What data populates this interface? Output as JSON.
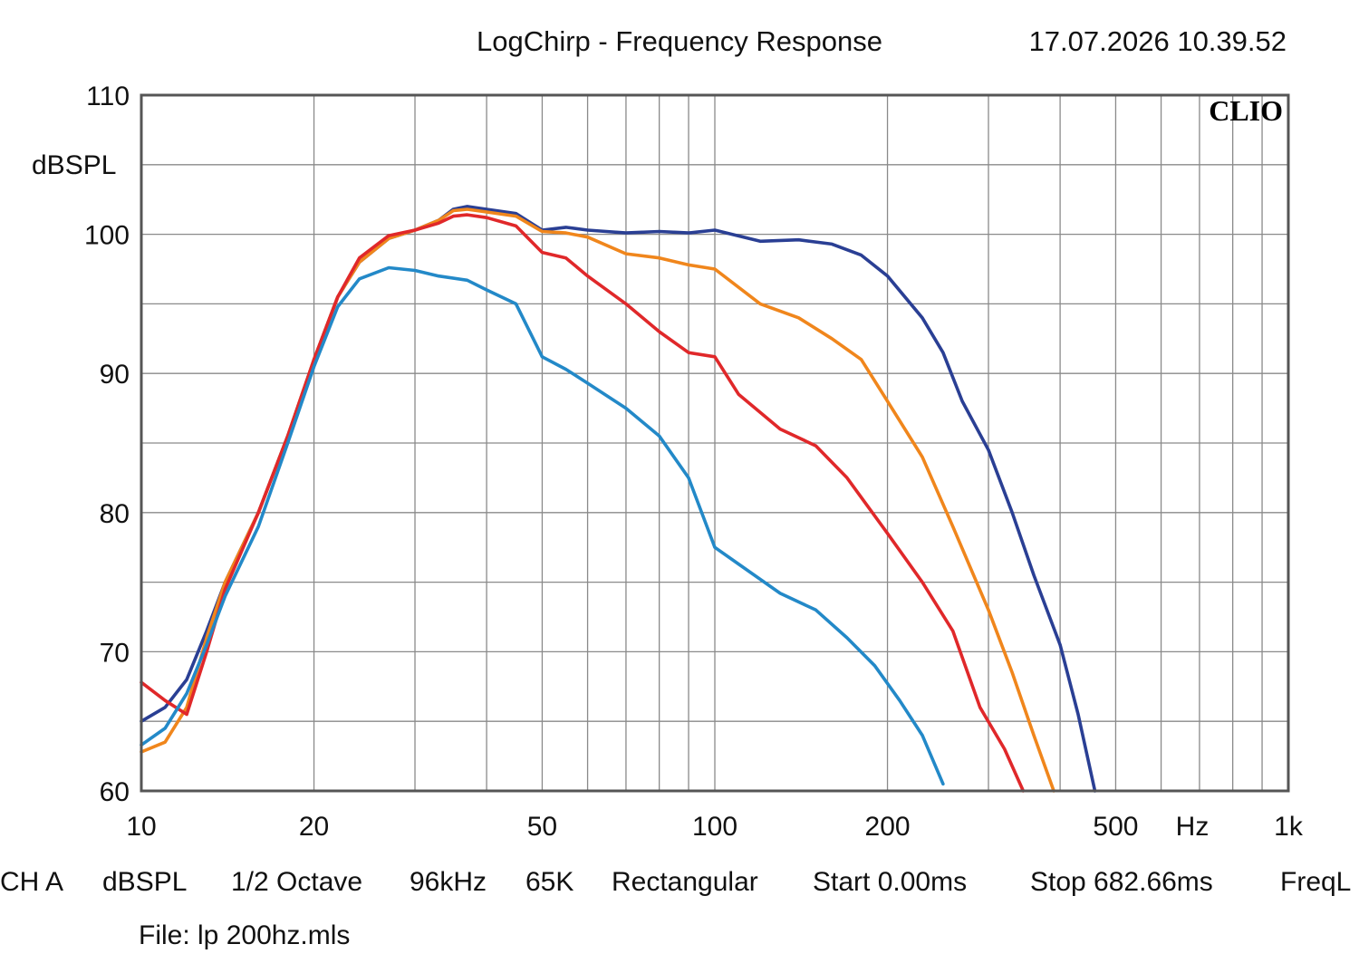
{
  "header": {
    "title": "LogChirp - Frequency Response",
    "timestamp": "17.07.2026 10.39.52"
  },
  "brand": "CLIO",
  "footer": {
    "items": [
      "CH A",
      "dBSPL",
      "1/2 Octave",
      "96kHz",
      "65K",
      "Rectangular",
      "Start 0.00ms",
      "Stop 682.66ms",
      "FreqL"
    ],
    "file": "File: lp 200hz.mls"
  },
  "chart_data": {
    "type": "line",
    "title": "LogChirp - Frequency Response",
    "xlabel": "Hz",
    "ylabel": "dBSPL",
    "xscale": "log",
    "xlim": [
      10,
      1000
    ],
    "ylim": [
      60,
      110
    ],
    "grid": true,
    "x_tick_labels": [
      {
        "value": 10,
        "label": "10"
      },
      {
        "value": 20,
        "label": "20"
      },
      {
        "value": 50,
        "label": "50"
      },
      {
        "value": 100,
        "label": "100"
      },
      {
        "value": 200,
        "label": "200"
      },
      {
        "value": 500,
        "label": "500"
      },
      {
        "value": 1000,
        "label": "1k"
      }
    ],
    "y_tick_labels": [
      60,
      70,
      80,
      90,
      100,
      110
    ],
    "series": [
      {
        "color": "#2a3f94",
        "points": [
          [
            10,
            65
          ],
          [
            11,
            66
          ],
          [
            12,
            68
          ],
          [
            13,
            71.5
          ],
          [
            14,
            75
          ],
          [
            16,
            80
          ],
          [
            18,
            85.5
          ],
          [
            20,
            91
          ],
          [
            22,
            95.5
          ],
          [
            24,
            98
          ],
          [
            27,
            99.7
          ],
          [
            30,
            100.3
          ],
          [
            33,
            101
          ],
          [
            35,
            101.8
          ],
          [
            37,
            102
          ],
          [
            40,
            101.8
          ],
          [
            45,
            101.5
          ],
          [
            50,
            100.3
          ],
          [
            55,
            100.5
          ],
          [
            60,
            100.3
          ],
          [
            70,
            100.1
          ],
          [
            80,
            100.2
          ],
          [
            90,
            100.1
          ],
          [
            100,
            100.3
          ],
          [
            120,
            99.5
          ],
          [
            140,
            99.6
          ],
          [
            160,
            99.3
          ],
          [
            180,
            98.5
          ],
          [
            200,
            97
          ],
          [
            230,
            94
          ],
          [
            250,
            91.5
          ],
          [
            270,
            88
          ],
          [
            300,
            84.5
          ],
          [
            330,
            80
          ],
          [
            360,
            75.5
          ],
          [
            400,
            70.5
          ],
          [
            430,
            65.5
          ],
          [
            460,
            60
          ]
        ]
      },
      {
        "color": "#f0861c",
        "points": [
          [
            10,
            62.8
          ],
          [
            11,
            63.5
          ],
          [
            12,
            66
          ],
          [
            13,
            71
          ],
          [
            14,
            75
          ],
          [
            16,
            80
          ],
          [
            18,
            85.5
          ],
          [
            20,
            91
          ],
          [
            22,
            95.5
          ],
          [
            24,
            98
          ],
          [
            27,
            99.7
          ],
          [
            30,
            100.3
          ],
          [
            33,
            101
          ],
          [
            35,
            101.7
          ],
          [
            37,
            101.8
          ],
          [
            40,
            101.6
          ],
          [
            45,
            101.3
          ],
          [
            50,
            100.2
          ],
          [
            55,
            100.1
          ],
          [
            60,
            99.8
          ],
          [
            70,
            98.6
          ],
          [
            80,
            98.3
          ],
          [
            90,
            97.8
          ],
          [
            100,
            97.5
          ],
          [
            120,
            95
          ],
          [
            140,
            94
          ],
          [
            160,
            92.5
          ],
          [
            180,
            91
          ],
          [
            200,
            88
          ],
          [
            230,
            84
          ],
          [
            260,
            79
          ],
          [
            300,
            73
          ],
          [
            330,
            68.5
          ],
          [
            360,
            64
          ],
          [
            390,
            60
          ]
        ]
      },
      {
        "color": "#e0282a",
        "points": [
          [
            10,
            67.8
          ],
          [
            11,
            66.5
          ],
          [
            12,
            65.5
          ],
          [
            13,
            70
          ],
          [
            14,
            74.5
          ],
          [
            16,
            80
          ],
          [
            18,
            85.5
          ],
          [
            20,
            91
          ],
          [
            22,
            95.5
          ],
          [
            24,
            98.3
          ],
          [
            27,
            99.9
          ],
          [
            30,
            100.3
          ],
          [
            33,
            100.8
          ],
          [
            35,
            101.3
          ],
          [
            37,
            101.4
          ],
          [
            40,
            101.2
          ],
          [
            45,
            100.6
          ],
          [
            50,
            98.7
          ],
          [
            55,
            98.3
          ],
          [
            60,
            97
          ],
          [
            70,
            95
          ],
          [
            80,
            93
          ],
          [
            90,
            91.5
          ],
          [
            100,
            91.2
          ],
          [
            110,
            88.5
          ],
          [
            130,
            86
          ],
          [
            150,
            84.8
          ],
          [
            170,
            82.5
          ],
          [
            200,
            78.5
          ],
          [
            230,
            75
          ],
          [
            260,
            71.5
          ],
          [
            290,
            66
          ],
          [
            320,
            63
          ],
          [
            345,
            60
          ]
        ]
      },
      {
        "color": "#2389c8",
        "points": [
          [
            10,
            63.3
          ],
          [
            11,
            64.5
          ],
          [
            12,
            67
          ],
          [
            13,
            70.5
          ],
          [
            14,
            74
          ],
          [
            16,
            79
          ],
          [
            18,
            85
          ],
          [
            20,
            90.5
          ],
          [
            22,
            94.8
          ],
          [
            24,
            96.8
          ],
          [
            27,
            97.6
          ],
          [
            30,
            97.4
          ],
          [
            33,
            97
          ],
          [
            37,
            96.7
          ],
          [
            40,
            96
          ],
          [
            45,
            95
          ],
          [
            50,
            91.2
          ],
          [
            55,
            90.3
          ],
          [
            60,
            89.3
          ],
          [
            70,
            87.5
          ],
          [
            80,
            85.5
          ],
          [
            90,
            82.5
          ],
          [
            100,
            77.5
          ],
          [
            110,
            76.3
          ],
          [
            130,
            74.2
          ],
          [
            150,
            73
          ],
          [
            170,
            71
          ],
          [
            190,
            69
          ],
          [
            210,
            66.5
          ],
          [
            230,
            64
          ],
          [
            250,
            60.5
          ]
        ]
      }
    ]
  }
}
